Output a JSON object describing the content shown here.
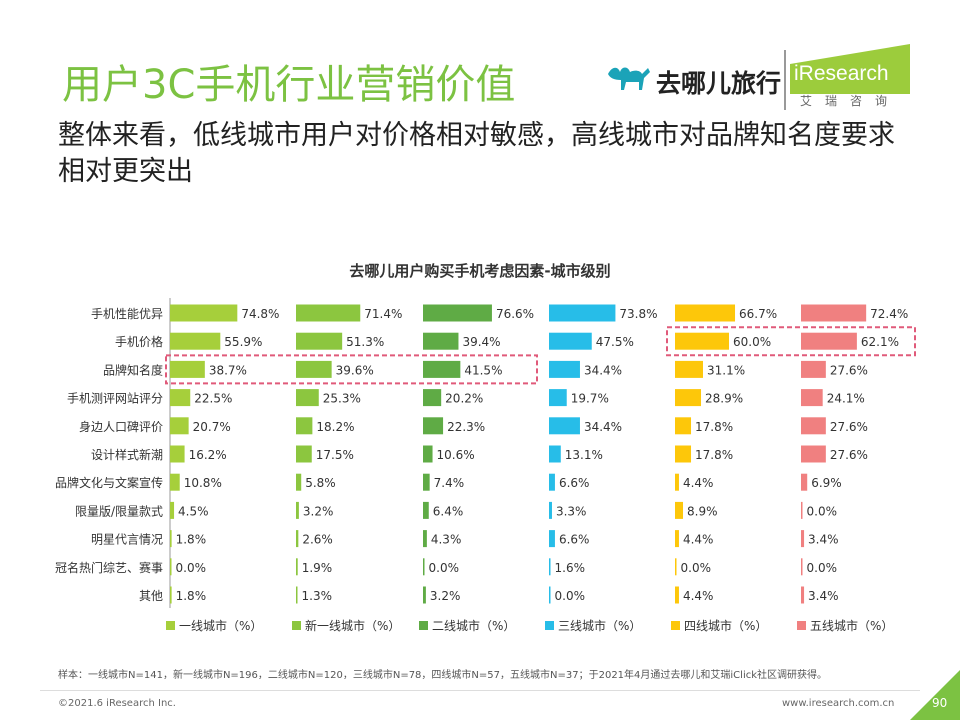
{
  "page": {
    "title": "用户3C手机行业营销价值",
    "subtitle": "整体来看，低线城市用户对价格相对敏感，高线城市对品牌知名度要求相对更突出",
    "logo_qunar": "去哪儿旅行",
    "logo_iresearch": "iResearch",
    "logo_iresearch_sub": "艾瑞咨询",
    "footnote": "样本：一线城市N=141，新一线城市N=196，二线城市N=120，三线城市N=78，四线城市N=57，五线城市N=37；于2021年4月通过去哪儿和艾瑞iClick社区调研获得。",
    "copyright": "©2021.6 iResearch Inc.",
    "website": "www.iresearch.com.cn",
    "page_number": "90"
  },
  "chart_data": {
    "type": "bar",
    "orientation": "horizontal-small-multiples",
    "title": "去哪儿用户购买手机考虑因素-城市级别",
    "categories": [
      "手机性能优异",
      "手机价格",
      "品牌知名度",
      "手机测评网站评分",
      "身边人口碑评价",
      "设计样式新潮",
      "品牌文化与文案宣传",
      "限量版/限量款式",
      "明星代言情况",
      "冠名热门综艺、赛事",
      "其他"
    ],
    "series": [
      {
        "name": "一线城市（%）",
        "color": "#a6cf3b",
        "values": [
          74.8,
          55.9,
          38.7,
          22.5,
          20.7,
          16.2,
          10.8,
          4.5,
          1.8,
          0.0,
          1.8
        ]
      },
      {
        "name": "新一线城市（%）",
        "color": "#8cc63f",
        "values": [
          71.4,
          51.3,
          39.6,
          25.3,
          18.2,
          17.5,
          5.8,
          3.2,
          2.6,
          1.9,
          1.3
        ]
      },
      {
        "name": "二线城市（%）",
        "color": "#5fab45",
        "values": [
          76.6,
          39.4,
          41.5,
          20.2,
          22.3,
          10.6,
          7.4,
          6.4,
          4.3,
          0.0,
          3.2
        ]
      },
      {
        "name": "三线城市（%）",
        "color": "#27bde8",
        "values": [
          73.8,
          47.5,
          34.4,
          19.7,
          34.4,
          13.1,
          6.6,
          3.3,
          6.6,
          1.6,
          0.0
        ]
      },
      {
        "name": "四线城市（%）",
        "color": "#fdc70a",
        "values": [
          66.7,
          60.0,
          31.1,
          28.9,
          17.8,
          17.8,
          4.4,
          8.9,
          4.4,
          0.0,
          4.4
        ]
      },
      {
        "name": "五线城市（%）",
        "color": "#f08080",
        "values": [
          72.4,
          62.1,
          27.6,
          24.1,
          27.6,
          27.6,
          6.9,
          0.0,
          3.4,
          0.0,
          3.4
        ]
      }
    ],
    "value_format": "1 decimal + %",
    "xlim": [
      0,
      100
    ],
    "highlights": [
      {
        "category": "品牌知名度",
        "series": [
          "一线城市（%）",
          "新一线城市（%）",
          "二线城市（%）"
        ]
      },
      {
        "category": "手机价格",
        "series": [
          "四线城市（%）",
          "五线城市（%）"
        ]
      }
    ]
  }
}
